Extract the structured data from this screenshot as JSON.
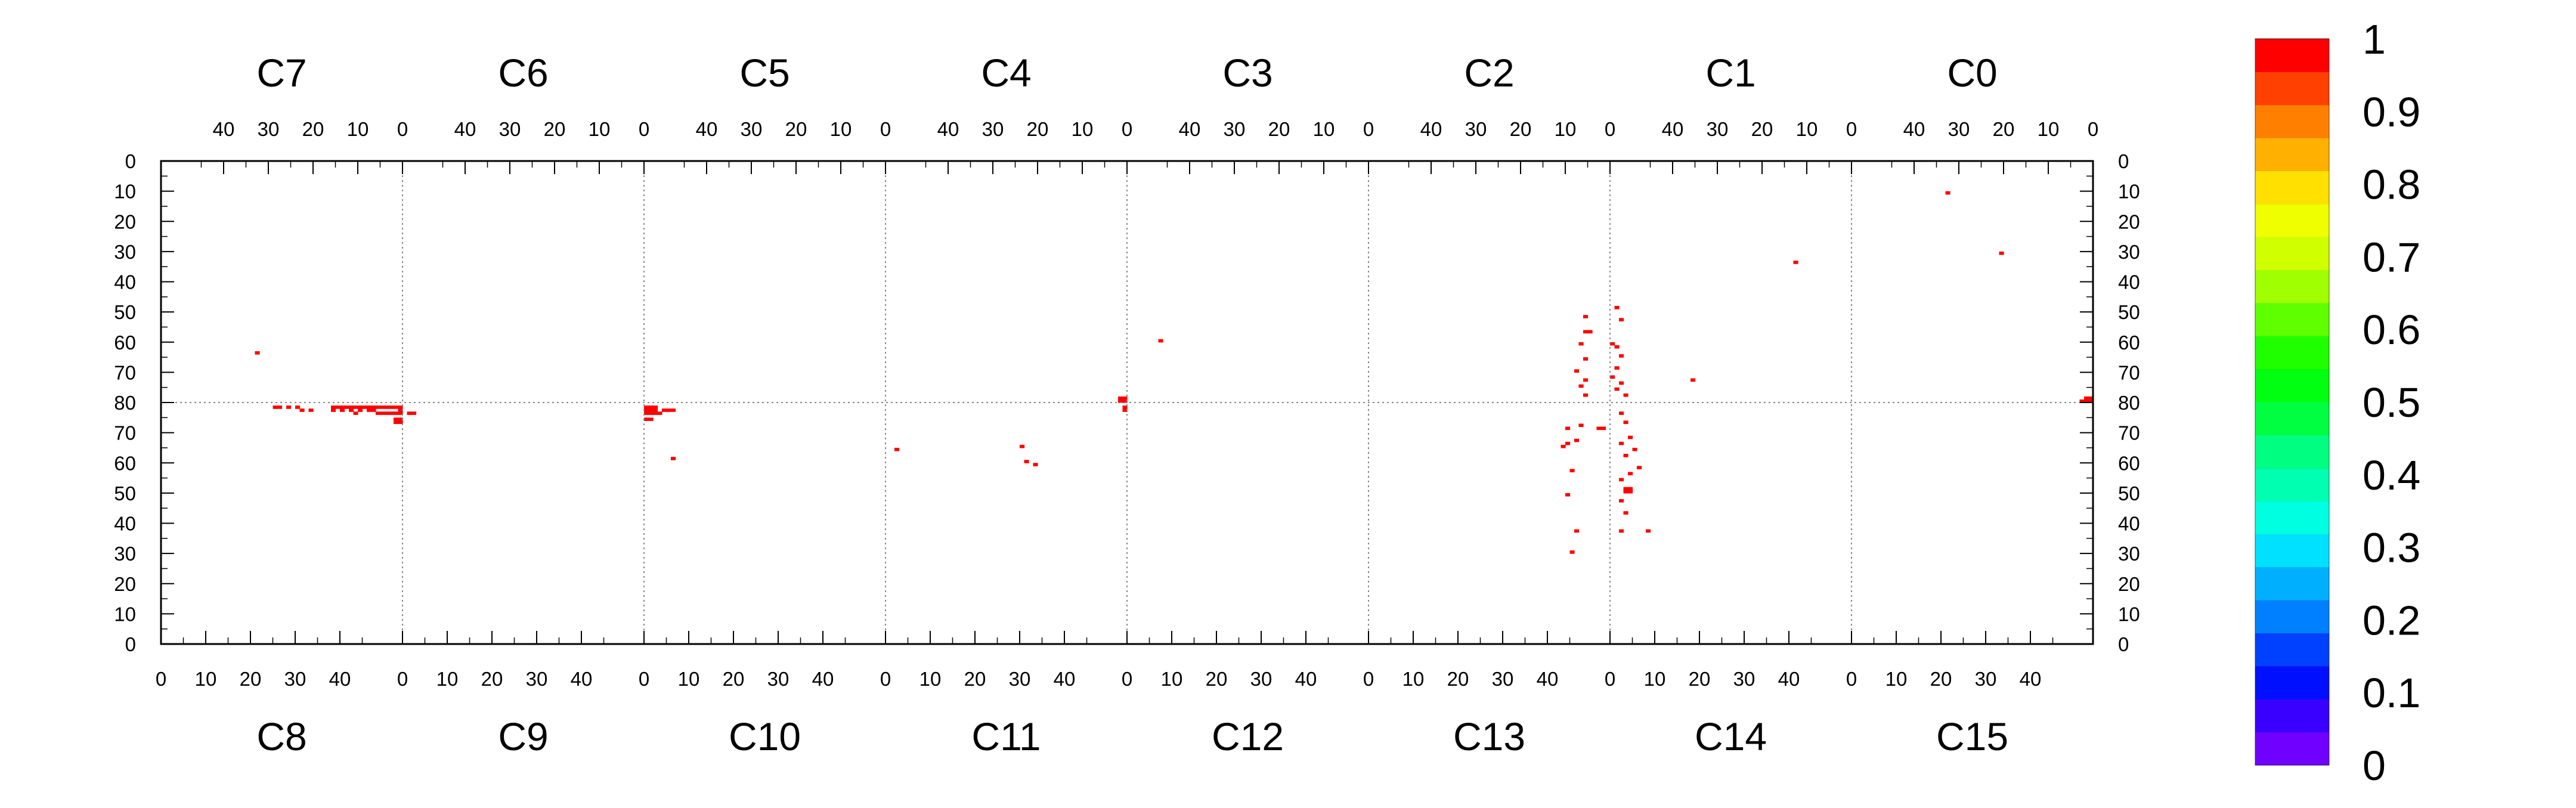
{
  "chart_data": {
    "type": "heatmap",
    "top_columns": [
      "C7",
      "C6",
      "C5",
      "C4",
      "C3",
      "C2",
      "C1",
      "C0"
    ],
    "bottom_columns": [
      "C8",
      "C9",
      "C10",
      "C11",
      "C12",
      "C13",
      "C14",
      "C15"
    ],
    "top_axis_ticks": [
      40,
      30,
      20,
      10,
      0
    ],
    "bottom_axis_ticks": [
      0,
      10,
      20,
      30,
      40
    ],
    "left_axis_ticks": [
      0,
      10,
      20,
      30,
      40,
      50,
      60,
      70,
      80,
      70,
      60,
      50,
      40,
      30,
      20,
      10,
      0
    ],
    "right_axis_ticks": [
      0,
      10,
      20,
      30,
      40,
      50,
      60,
      70,
      80,
      70,
      60,
      50,
      40,
      30,
      20,
      10,
      0
    ],
    "column_range": [
      0,
      54
    ],
    "row_range": [
      0,
      80
    ],
    "grid": "dotted lines at channel boundaries and at the horizontal midline",
    "colorbar": {
      "ticks": [
        "1",
        "0.9",
        "0.8",
        "0.7",
        "0.6",
        "0.5",
        "0.4",
        "0.3",
        "0.2",
        "0.1",
        "0"
      ],
      "range": [
        0,
        1
      ],
      "colors": [
        "#7000ff",
        "#3a00ff",
        "#0010ff",
        "#0040ff",
        "#0080ff",
        "#00b0ff",
        "#00e0ff",
        "#00ffe0",
        "#00ffb0",
        "#00ff80",
        "#00ff40",
        "#00ff10",
        "#20ff00",
        "#60ff00",
        "#a0ff00",
        "#d0ff00",
        "#f0ff00",
        "#ffe000",
        "#ffb000",
        "#ff8000",
        "#ff4000",
        "#ff0000"
      ]
    },
    "cells": [
      {
        "half": "top",
        "channel": 7,
        "ch": 32,
        "row": 63,
        "value": 1
      },
      {
        "half": "top",
        "channel": 1,
        "ch": 12,
        "row": 33,
        "value": 1
      },
      {
        "half": "top",
        "channel": 1,
        "ch": 35,
        "row": 72,
        "value": 1
      },
      {
        "half": "top",
        "channel": 0,
        "ch": 32,
        "row": 10,
        "value": 1
      },
      {
        "half": "top",
        "channel": 0,
        "ch": 20,
        "row": 30,
        "value": 1
      },
      {
        "half": "top",
        "channel": 4,
        "ch": 0,
        "row": 78,
        "value": 1
      },
      {
        "half": "top",
        "channel": 4,
        "ch": 1,
        "row": 78,
        "value": 1
      },
      {
        "half": "top",
        "channel": 4,
        "ch": 0,
        "row": 79,
        "value": 1
      },
      {
        "half": "top",
        "channel": 4,
        "ch": 1,
        "row": 79,
        "value": 1
      },
      {
        "half": "top",
        "channel": 3,
        "ch": 46,
        "row": 59,
        "value": 1
      },
      {
        "half": "top",
        "channel": 2,
        "ch": 5,
        "row": 51,
        "value": 1
      },
      {
        "half": "top",
        "channel": 2,
        "ch": 5,
        "row": 56,
        "value": 1
      },
      {
        "half": "top",
        "channel": 2,
        "ch": 4,
        "row": 56,
        "value": 1
      },
      {
        "half": "top",
        "channel": 2,
        "ch": 6,
        "row": 60,
        "value": 1
      },
      {
        "half": "top",
        "channel": 2,
        "ch": 5,
        "row": 65,
        "value": 1
      },
      {
        "half": "top",
        "channel": 2,
        "ch": 7,
        "row": 69,
        "value": 1
      },
      {
        "half": "top",
        "channel": 2,
        "ch": 5,
        "row": 72,
        "value": 1
      },
      {
        "half": "top",
        "channel": 2,
        "ch": 6,
        "row": 74,
        "value": 1
      },
      {
        "half": "top",
        "channel": 2,
        "ch": 5,
        "row": 77,
        "value": 1
      },
      {
        "half": "top",
        "channel": 1,
        "ch": 52,
        "row": 48,
        "value": 1
      },
      {
        "half": "top",
        "channel": 1,
        "ch": 51,
        "row": 52,
        "value": 1
      },
      {
        "half": "top",
        "channel": 1,
        "ch": 53,
        "row": 60,
        "value": 1
      },
      {
        "half": "top",
        "channel": 1,
        "ch": 52,
        "row": 61,
        "value": 1
      },
      {
        "half": "top",
        "channel": 1,
        "ch": 51,
        "row": 64,
        "value": 1
      },
      {
        "half": "top",
        "channel": 1,
        "ch": 52,
        "row": 68,
        "value": 1
      },
      {
        "half": "top",
        "channel": 1,
        "ch": 53,
        "row": 71,
        "value": 1
      },
      {
        "half": "top",
        "channel": 1,
        "ch": 51,
        "row": 73,
        "value": 1
      },
      {
        "half": "top",
        "channel": 1,
        "ch": 52,
        "row": 75,
        "value": 1
      },
      {
        "half": "top",
        "channel": 1,
        "ch": 50,
        "row": 77,
        "value": 1
      },
      {
        "half": "top",
        "channel": 0,
        "ch": 0,
        "row": 78,
        "value": 1
      },
      {
        "half": "top",
        "channel": 0,
        "ch": 1,
        "row": 78,
        "value": 1
      },
      {
        "half": "top",
        "channel": 0,
        "ch": 0,
        "row": 79,
        "value": 1
      },
      {
        "half": "top",
        "channel": 0,
        "ch": 1,
        "row": 79,
        "value": 1
      },
      {
        "half": "top",
        "channel": 0,
        "ch": 2,
        "row": 79,
        "value": 1
      },
      {
        "half": "bottom",
        "channel": 8,
        "ch": 25,
        "row": 79,
        "value": 1
      },
      {
        "half": "bottom",
        "channel": 8,
        "ch": 26,
        "row": 79,
        "value": 1
      },
      {
        "half": "bottom",
        "channel": 8,
        "ch": 28,
        "row": 79,
        "value": 1
      },
      {
        "half": "bottom",
        "channel": 8,
        "ch": 30,
        "row": 79,
        "value": 1
      },
      {
        "half": "bottom",
        "channel": 8,
        "ch": 31,
        "row": 78,
        "value": 1
      },
      {
        "half": "bottom",
        "channel": 8,
        "ch": 33,
        "row": 78,
        "value": 1
      },
      {
        "half": "bottom",
        "channel": 8,
        "ch": 38,
        "row": 79,
        "value": 1
      },
      {
        "half": "bottom",
        "channel": 8,
        "ch": 39,
        "row": 79,
        "value": 1
      },
      {
        "half": "bottom",
        "channel": 8,
        "ch": 40,
        "row": 79,
        "value": 1
      },
      {
        "half": "bottom",
        "channel": 8,
        "ch": 41,
        "row": 79,
        "value": 1
      },
      {
        "half": "bottom",
        "channel": 8,
        "ch": 42,
        "row": 79,
        "value": 1
      },
      {
        "half": "bottom",
        "channel": 8,
        "ch": 43,
        "row": 79,
        "value": 1
      },
      {
        "half": "bottom",
        "channel": 8,
        "ch": 44,
        "row": 79,
        "value": 1
      },
      {
        "half": "bottom",
        "channel": 8,
        "ch": 45,
        "row": 79,
        "value": 1
      },
      {
        "half": "bottom",
        "channel": 8,
        "ch": 46,
        "row": 79,
        "value": 1
      },
      {
        "half": "bottom",
        "channel": 8,
        "ch": 47,
        "row": 79,
        "value": 1
      },
      {
        "half": "bottom",
        "channel": 8,
        "ch": 48,
        "row": 79,
        "value": 1
      },
      {
        "half": "bottom",
        "channel": 8,
        "ch": 49,
        "row": 79,
        "value": 1
      },
      {
        "half": "bottom",
        "channel": 8,
        "ch": 50,
        "row": 79,
        "value": 1
      },
      {
        "half": "bottom",
        "channel": 8,
        "ch": 51,
        "row": 79,
        "value": 1
      },
      {
        "half": "bottom",
        "channel": 8,
        "ch": 52,
        "row": 79,
        "value": 1
      },
      {
        "half": "bottom",
        "channel": 8,
        "ch": 53,
        "row": 79,
        "value": 1
      },
      {
        "half": "bottom",
        "channel": 8,
        "ch": 38,
        "row": 78,
        "value": 1
      },
      {
        "half": "bottom",
        "channel": 8,
        "ch": 40,
        "row": 78,
        "value": 1
      },
      {
        "half": "bottom",
        "channel": 8,
        "ch": 42,
        "row": 78,
        "value": 1
      },
      {
        "half": "bottom",
        "channel": 8,
        "ch": 43,
        "row": 77,
        "value": 1
      },
      {
        "half": "bottom",
        "channel": 8,
        "ch": 44,
        "row": 78,
        "value": 1
      },
      {
        "half": "bottom",
        "channel": 8,
        "ch": 46,
        "row": 78,
        "value": 1
      },
      {
        "half": "bottom",
        "channel": 8,
        "ch": 47,
        "row": 78,
        "value": 1
      },
      {
        "half": "bottom",
        "channel": 8,
        "ch": 48,
        "row": 77,
        "value": 1
      },
      {
        "half": "bottom",
        "channel": 8,
        "ch": 49,
        "row": 77,
        "value": 1
      },
      {
        "half": "bottom",
        "channel": 8,
        "ch": 50,
        "row": 77,
        "value": 1
      },
      {
        "half": "bottom",
        "channel": 8,
        "ch": 51,
        "row": 77,
        "value": 1
      },
      {
        "half": "bottom",
        "channel": 8,
        "ch": 52,
        "row": 77,
        "value": 1
      },
      {
        "half": "bottom",
        "channel": 8,
        "ch": 53,
        "row": 78,
        "value": 1
      },
      {
        "half": "bottom",
        "channel": 8,
        "ch": 53,
        "row": 77,
        "value": 1
      },
      {
        "half": "bottom",
        "channel": 8,
        "ch": 52,
        "row": 75,
        "value": 1
      },
      {
        "half": "bottom",
        "channel": 8,
        "ch": 53,
        "row": 75,
        "value": 1
      },
      {
        "half": "bottom",
        "channel": 8,
        "ch": 52,
        "row": 74,
        "value": 1
      },
      {
        "half": "bottom",
        "channel": 8,
        "ch": 53,
        "row": 74,
        "value": 1
      },
      {
        "half": "bottom",
        "channel": 9,
        "ch": 1,
        "row": 77,
        "value": 1
      },
      {
        "half": "bottom",
        "channel": 9,
        "ch": 2,
        "row": 77,
        "value": 1
      },
      {
        "half": "bottom",
        "channel": 10,
        "ch": 0,
        "row": 79,
        "value": 1
      },
      {
        "half": "bottom",
        "channel": 10,
        "ch": 1,
        "row": 79,
        "value": 1
      },
      {
        "half": "bottom",
        "channel": 10,
        "ch": 2,
        "row": 79,
        "value": 1
      },
      {
        "half": "bottom",
        "channel": 10,
        "ch": 0,
        "row": 78,
        "value": 1
      },
      {
        "half": "bottom",
        "channel": 10,
        "ch": 1,
        "row": 78,
        "value": 1
      },
      {
        "half": "bottom",
        "channel": 10,
        "ch": 2,
        "row": 78,
        "value": 1
      },
      {
        "half": "bottom",
        "channel": 10,
        "ch": 0,
        "row": 77,
        "value": 1
      },
      {
        "half": "bottom",
        "channel": 10,
        "ch": 1,
        "row": 77,
        "value": 1
      },
      {
        "half": "bottom",
        "channel": 10,
        "ch": 2,
        "row": 77,
        "value": 1
      },
      {
        "half": "bottom",
        "channel": 10,
        "ch": 4,
        "row": 78,
        "value": 1
      },
      {
        "half": "bottom",
        "channel": 10,
        "ch": 5,
        "row": 78,
        "value": 1
      },
      {
        "half": "bottom",
        "channel": 10,
        "ch": 6,
        "row": 78,
        "value": 1
      },
      {
        "half": "bottom",
        "channel": 10,
        "ch": 3,
        "row": 77,
        "value": 1
      },
      {
        "half": "bottom",
        "channel": 10,
        "ch": 0,
        "row": 75,
        "value": 1
      },
      {
        "half": "bottom",
        "channel": 10,
        "ch": 1,
        "row": 75,
        "value": 1
      },
      {
        "half": "bottom",
        "channel": 10,
        "ch": 6,
        "row": 62,
        "value": 1
      },
      {
        "half": "bottom",
        "channel": 11,
        "ch": 2,
        "row": 65,
        "value": 1
      },
      {
        "half": "bottom",
        "channel": 11,
        "ch": 30,
        "row": 66,
        "value": 1
      },
      {
        "half": "bottom",
        "channel": 11,
        "ch": 31,
        "row": 61,
        "value": 1
      },
      {
        "half": "bottom",
        "channel": 11,
        "ch": 33,
        "row": 60,
        "value": 1
      },
      {
        "half": "bottom",
        "channel": 11,
        "ch": 53,
        "row": 79,
        "value": 1
      },
      {
        "half": "bottom",
        "channel": 11,
        "ch": 53,
        "row": 78,
        "value": 1
      },
      {
        "half": "bottom",
        "channel": 13,
        "ch": 44,
        "row": 72,
        "value": 1
      },
      {
        "half": "bottom",
        "channel": 13,
        "ch": 47,
        "row": 73,
        "value": 1
      },
      {
        "half": "bottom",
        "channel": 13,
        "ch": 51,
        "row": 72,
        "value": 1
      },
      {
        "half": "bottom",
        "channel": 13,
        "ch": 52,
        "row": 72,
        "value": 1
      },
      {
        "half": "bottom",
        "channel": 13,
        "ch": 43,
        "row": 66,
        "value": 1
      },
      {
        "half": "bottom",
        "channel": 13,
        "ch": 44,
        "row": 67,
        "value": 1
      },
      {
        "half": "bottom",
        "channel": 13,
        "ch": 46,
        "row": 68,
        "value": 1
      },
      {
        "half": "bottom",
        "channel": 13,
        "ch": 45,
        "row": 58,
        "value": 1
      },
      {
        "half": "bottom",
        "channel": 13,
        "ch": 44,
        "row": 50,
        "value": 1
      },
      {
        "half": "bottom",
        "channel": 13,
        "ch": 46,
        "row": 38,
        "value": 1
      },
      {
        "half": "bottom",
        "channel": 13,
        "ch": 45,
        "row": 31,
        "value": 1
      },
      {
        "half": "bottom",
        "channel": 14,
        "ch": 2,
        "row": 77,
        "value": 1
      },
      {
        "half": "bottom",
        "channel": 14,
        "ch": 3,
        "row": 74,
        "value": 1
      },
      {
        "half": "bottom",
        "channel": 14,
        "ch": 4,
        "row": 69,
        "value": 1
      },
      {
        "half": "bottom",
        "channel": 14,
        "ch": 2,
        "row": 67,
        "value": 1
      },
      {
        "half": "bottom",
        "channel": 14,
        "ch": 5,
        "row": 65,
        "value": 1
      },
      {
        "half": "bottom",
        "channel": 14,
        "ch": 3,
        "row": 63,
        "value": 1
      },
      {
        "half": "bottom",
        "channel": 14,
        "ch": 6,
        "row": 59,
        "value": 1
      },
      {
        "half": "bottom",
        "channel": 14,
        "ch": 4,
        "row": 57,
        "value": 1
      },
      {
        "half": "bottom",
        "channel": 14,
        "ch": 2,
        "row": 55,
        "value": 1
      },
      {
        "half": "bottom",
        "channel": 14,
        "ch": 3,
        "row": 52,
        "value": 1
      },
      {
        "half": "bottom",
        "channel": 14,
        "ch": 4,
        "row": 52,
        "value": 1
      },
      {
        "half": "bottom",
        "channel": 14,
        "ch": 3,
        "row": 51,
        "value": 1
      },
      {
        "half": "bottom",
        "channel": 14,
        "ch": 4,
        "row": 51,
        "value": 1
      },
      {
        "half": "bottom",
        "channel": 14,
        "ch": 2,
        "row": 48,
        "value": 1
      },
      {
        "half": "bottom",
        "channel": 14,
        "ch": 3,
        "row": 44,
        "value": 1
      },
      {
        "half": "bottom",
        "channel": 14,
        "ch": 2,
        "row": 38,
        "value": 1
      },
      {
        "half": "bottom",
        "channel": 14,
        "ch": 8,
        "row": 38,
        "value": 1
      }
    ]
  }
}
